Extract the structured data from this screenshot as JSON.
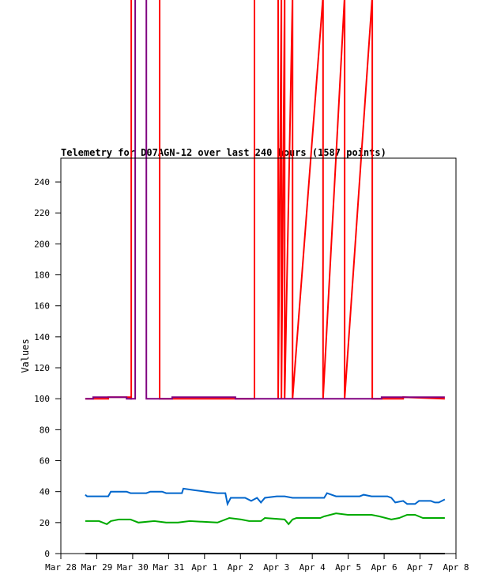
{
  "chart_data": {
    "type": "line",
    "title": "Telemetry for D07AGN-12 over last 240 hours (1587 points)",
    "xlabel": "",
    "ylabel": "Values",
    "x_units": "days since Mar 28",
    "xlim": [
      0,
      11
    ],
    "ylim": [
      0,
      255
    ],
    "xticks": [
      {
        "v": 0,
        "label": "Mar 28"
      },
      {
        "v": 1,
        "label": "Mar 29"
      },
      {
        "v": 2,
        "label": "Mar 30"
      },
      {
        "v": 3,
        "label": "Mar 31"
      },
      {
        "v": 4,
        "label": "Apr 1"
      },
      {
        "v": 5,
        "label": "Apr 2"
      },
      {
        "v": 6,
        "label": "Apr 3"
      },
      {
        "v": 7,
        "label": "Apr 4"
      },
      {
        "v": 8,
        "label": "Apr 5"
      },
      {
        "v": 9,
        "label": "Apr 6"
      },
      {
        "v": 10,
        "label": "Apr 7"
      },
      {
        "v": 11,
        "label": "Apr 8"
      }
    ],
    "yticks": [
      0,
      20,
      40,
      60,
      80,
      100,
      120,
      140,
      160,
      180,
      200,
      220,
      240
    ],
    "series": [
      {
        "name": "red",
        "color": "#ff0000",
        "x": [
          0.68,
          1.32,
          1.32,
          1.94,
          1.94,
          1.96,
          1.96,
          2.75,
          2.75,
          5.39,
          5.39,
          6.05,
          6.05,
          6.14,
          6.14,
          6.23,
          6.23,
          6.45,
          6.45,
          7.3,
          7.3,
          7.9,
          7.9,
          8.67,
          8.67,
          9.53,
          9.53,
          10.69
        ],
        "y": [
          100,
          100,
          101,
          101,
          100,
          100,
          360,
          360,
          100,
          100,
          360,
          360,
          100,
          360,
          100,
          360,
          100,
          360,
          100,
          360,
          100,
          360,
          100,
          360,
          100,
          100,
          101,
          100
        ]
      },
      {
        "name": "purple",
        "color": "#800080",
        "x": [
          0.68,
          0.9,
          0.9,
          1.83,
          1.83,
          2.07,
          2.07,
          2.38,
          2.38,
          3.1,
          3.1,
          4.86,
          4.86,
          8.93,
          8.93,
          10.69
        ],
        "y": [
          100,
          100,
          101,
          101,
          100,
          100,
          360,
          360,
          100,
          100,
          101,
          101,
          100,
          100,
          101,
          101
        ]
      },
      {
        "name": "blue",
        "color": "#0066cc",
        "x": [
          0.68,
          0.73,
          1.32,
          1.39,
          1.83,
          1.94,
          2.38,
          2.49,
          2.82,
          2.93,
          3.37,
          3.41,
          3.7,
          4.03,
          4.36,
          4.58,
          4.64,
          4.73,
          5.13,
          5.3,
          5.46,
          5.57,
          5.68,
          6.01,
          6.23,
          6.45,
          6.67,
          7.33,
          7.41,
          7.66,
          8.32,
          8.43,
          8.65,
          8.87,
          9.09,
          9.2,
          9.31,
          9.53,
          9.64,
          9.86,
          9.97,
          10.3,
          10.41,
          10.52,
          10.69
        ],
        "y": [
          38,
          37,
          37,
          40,
          40,
          39,
          39,
          40,
          40,
          39,
          39,
          42,
          41,
          40,
          39,
          39,
          32,
          36,
          36,
          34,
          36,
          33,
          36,
          37,
          37,
          36,
          36,
          36,
          39,
          37,
          37,
          38,
          37,
          37,
          37,
          36,
          33,
          34,
          32,
          32,
          34,
          34,
          33,
          33,
          35
        ]
      },
      {
        "name": "green",
        "color": "#00aa00",
        "x": [
          0.68,
          1.06,
          1.28,
          1.39,
          1.61,
          1.94,
          2.16,
          2.6,
          2.93,
          3.26,
          3.59,
          4.36,
          4.58,
          4.69,
          5.02,
          5.24,
          5.57,
          5.68,
          6.23,
          6.34,
          6.45,
          6.56,
          7.22,
          7.33,
          7.66,
          7.99,
          8.65,
          8.87,
          9.2,
          9.42,
          9.64,
          9.86,
          10.08,
          10.69
        ],
        "y": [
          21,
          21,
          19,
          21,
          22,
          22,
          20,
          21,
          20,
          20,
          21,
          20,
          22,
          23,
          22,
          21,
          21,
          23,
          22,
          19,
          22,
          23,
          23,
          24,
          26,
          25,
          25,
          24,
          22,
          23,
          25,
          25,
          23,
          23
        ]
      },
      {
        "name": "black",
        "color": "#000000",
        "x": [
          0.68,
          10.69
        ],
        "y": [
          0,
          0
        ]
      }
    ]
  }
}
